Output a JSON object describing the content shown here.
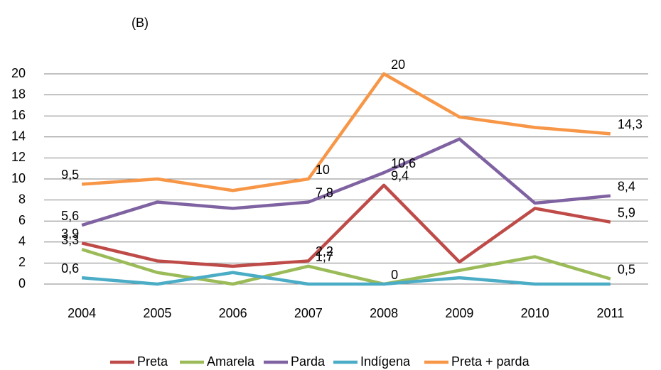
{
  "chart_data": {
    "type": "line",
    "title": "(B)",
    "categories": [
      "2004",
      "2005",
      "2006",
      "2007",
      "2008",
      "2009",
      "2010",
      "2011"
    ],
    "series": [
      {
        "name": "Preta",
        "color": "#be4b48",
        "values": [
          3.9,
          2.2,
          1.7,
          2.2,
          9.4,
          2.1,
          7.2,
          5.9
        ],
        "value_labels": [
          "3,9",
          null,
          null,
          "2,2",
          "9,4",
          null,
          null,
          "5,9"
        ]
      },
      {
        "name": "Amarela",
        "color": "#9bbb59",
        "values": [
          3.3,
          1.1,
          0,
          1.7,
          0,
          1.3,
          2.6,
          0.5
        ],
        "value_labels": [
          "3,3",
          null,
          null,
          "1,7",
          "0",
          null,
          null,
          "0,5"
        ]
      },
      {
        "name": "Parda",
        "color": "#7f62a1",
        "values": [
          5.6,
          7.8,
          7.2,
          7.8,
          10.6,
          13.8,
          7.7,
          8.4
        ],
        "value_labels": [
          "5,6",
          null,
          null,
          "7,8",
          "10,6",
          null,
          null,
          "8,4"
        ]
      },
      {
        "name": "Indígena",
        "color": "#4bacc6",
        "values": [
          0.6,
          0,
          1.1,
          0,
          0,
          0.6,
          0,
          0
        ],
        "value_labels": [
          "0,6",
          null,
          null,
          null,
          null,
          null,
          null,
          null
        ]
      },
      {
        "name": "Preta + parda",
        "color": "#f79646",
        "values": [
          9.5,
          10,
          8.9,
          10,
          20,
          15.9,
          14.9,
          14.3
        ],
        "value_labels": [
          "9,5",
          null,
          null,
          "10",
          "20",
          null,
          null,
          "14,3"
        ]
      }
    ],
    "ylim": [
      0,
      20
    ],
    "yticks": [
      0,
      2,
      4,
      6,
      8,
      10,
      12,
      14,
      16,
      18,
      20
    ],
    "grid": true,
    "legend": "bottom"
  }
}
